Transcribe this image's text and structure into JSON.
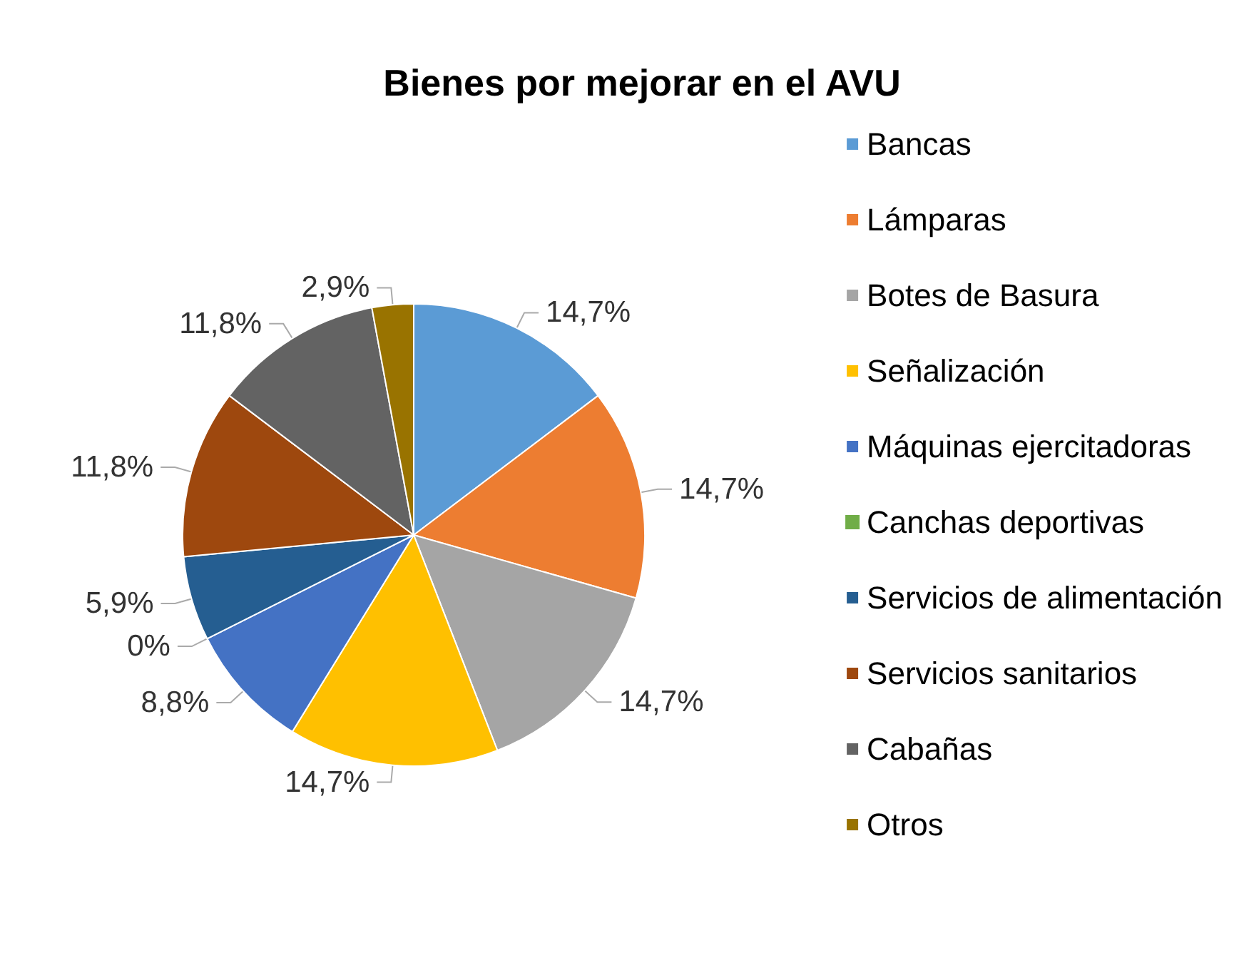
{
  "chart_data": {
    "type": "pie",
    "title": "Bienes por mejorar en el AVU",
    "categories": [
      "Bancas",
      "Lámparas",
      "Botes de Basura",
      "Señalización",
      "Máquinas ejercitadoras",
      "Canchas deportivas",
      "Servicios de alimentación",
      "Servicios sanitarios",
      "Cabañas",
      "Otros"
    ],
    "values": [
      14.7,
      14.7,
      14.7,
      14.7,
      8.8,
      0,
      5.9,
      11.8,
      11.8,
      2.9
    ],
    "value_labels": [
      "14,7%",
      "14,7%",
      "14,7%",
      "14,7%",
      "8,8%",
      "0%",
      "5,9%",
      "11,8%",
      "11,8%",
      "2,9%"
    ],
    "colors": [
      "#5b9bd5",
      "#ed7d31",
      "#a5a5a5",
      "#ffc000",
      "#4472c4",
      "#70ad47",
      "#255e91",
      "#9e480e",
      "#636363",
      "#997300"
    ],
    "legend": "right"
  }
}
